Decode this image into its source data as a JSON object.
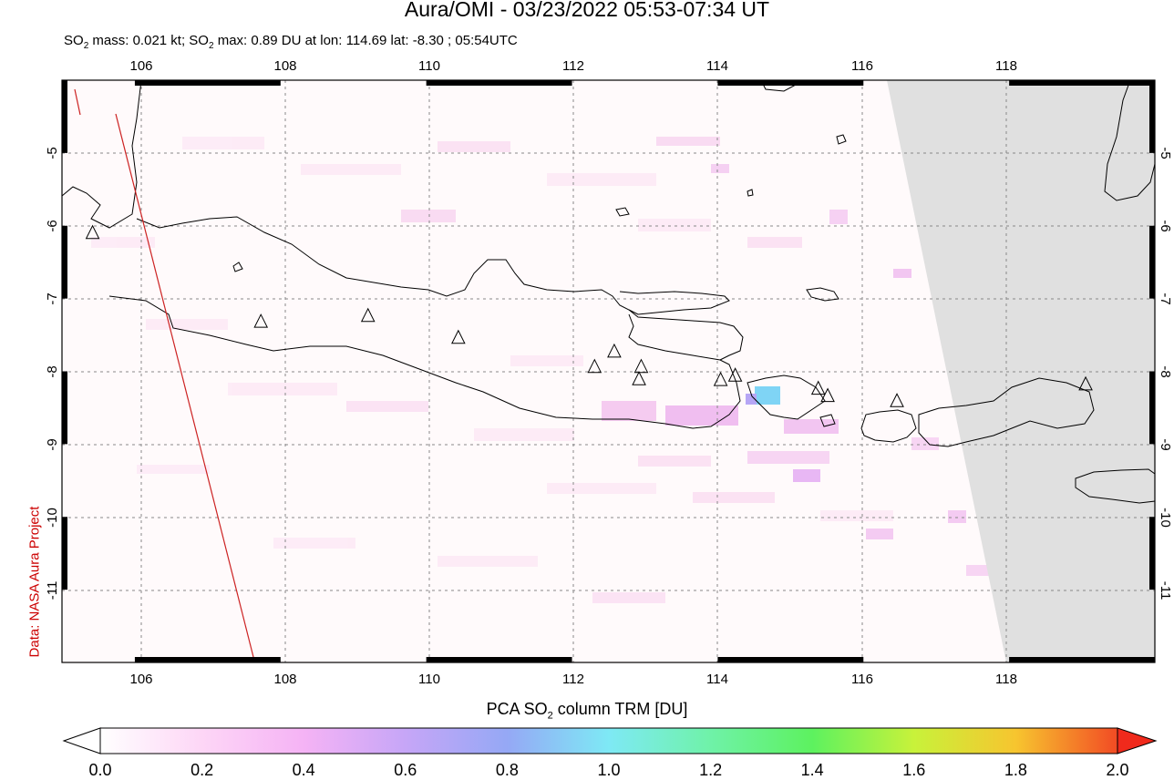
{
  "header": {
    "title": "Aura/OMI - 03/23/2022 05:53-07:34 UT",
    "subtitle_prefix": "SO",
    "subtitle_sub": "2",
    "subtitle_mid": " mass: 0.021 kt; SO",
    "subtitle_sub2": "2",
    "subtitle_rest": " max: 0.89 DU at lon: 114.69 lat: -8.30 ; 05:54UTC"
  },
  "credit": "Data: NASA Aura Project",
  "map": {
    "lon_range": [
      105,
      120
    ],
    "lat_range": [
      -12,
      -4
    ],
    "lon_ticks": [
      "106",
      "108",
      "110",
      "112",
      "114",
      "116",
      "118"
    ],
    "lat_ticks": [
      "-5",
      "-6",
      "-7",
      "-8",
      "-9",
      "-10",
      "-11"
    ],
    "max_marker": {
      "lon": 114.69,
      "lat": -8.3,
      "value": 0.89
    },
    "volcanoes": [
      {
        "lon": 105.42,
        "lat": -6.1
      },
      {
        "lon": 107.73,
        "lat": -7.32
      },
      {
        "lon": 109.2,
        "lat": -7.24
      },
      {
        "lon": 110.44,
        "lat": -7.54
      },
      {
        "lon": 112.31,
        "lat": -7.94
      },
      {
        "lon": 112.58,
        "lat": -7.73
      },
      {
        "lon": 112.95,
        "lat": -7.94
      },
      {
        "lon": 112.92,
        "lat": -8.11
      },
      {
        "lon": 114.04,
        "lat": -8.12
      },
      {
        "lon": 114.24,
        "lat": -8.06
      },
      {
        "lon": 115.38,
        "lat": -8.24
      },
      {
        "lon": 115.51,
        "lat": -8.34
      },
      {
        "lon": 116.46,
        "lat": -8.41
      },
      {
        "lon": 119.05,
        "lat": -8.18
      }
    ],
    "no_data_color": "#e0e0e0"
  },
  "colorbar": {
    "title_prefix": "PCA SO",
    "title_sub": "2",
    "title_rest": " column TRM [DU]",
    "ticks": [
      "0.0",
      "0.2",
      "0.4",
      "0.6",
      "0.8",
      "1.0",
      "1.2",
      "1.4",
      "1.6",
      "1.8",
      "2.0"
    ],
    "colors": [
      "#ffffff",
      "#fdd6f6",
      "#f5b3f5",
      "#c6a6f7",
      "#95a8f5",
      "#7ee9f5",
      "#6ff2a8",
      "#5df25f",
      "#c8f23a",
      "#f7c52f",
      "#f24b24"
    ]
  }
}
